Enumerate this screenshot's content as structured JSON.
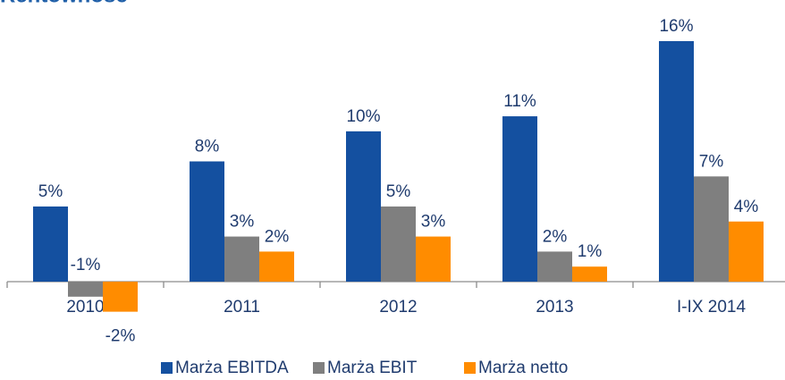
{
  "chart_data": {
    "type": "bar",
    "title": "Rentowność",
    "categories": [
      "2010",
      "2011",
      "2012",
      "2013",
      "I-IX 2014"
    ],
    "series": [
      {
        "name": "Marża EBITDA",
        "color": "#1450a0",
        "values": [
          5,
          8,
          10,
          11,
          16
        ],
        "value_labels": [
          "5%",
          "8%",
          "10%",
          "11%",
          "16%"
        ]
      },
      {
        "name": "Marża EBIT",
        "color": "#7f7f7f",
        "values": [
          -1,
          3,
          5,
          2,
          7
        ],
        "value_labels": [
          "-1%",
          "3%",
          "5%",
          "2%",
          "7%"
        ]
      },
      {
        "name": "Marża netto",
        "color": "#ff8c00",
        "values": [
          -2,
          2,
          3,
          1,
          4
        ],
        "value_labels": [
          "-2%",
          "2%",
          "3%",
          "1%",
          "4%"
        ]
      }
    ],
    "legend": "bottom"
  }
}
